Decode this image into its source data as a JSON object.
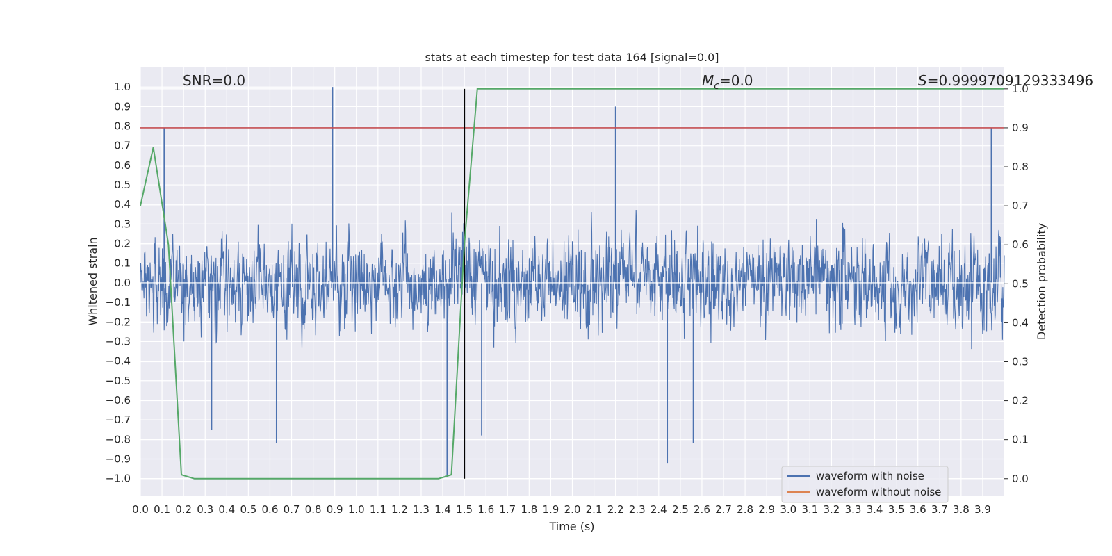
{
  "chart_data": {
    "type": "line",
    "title": "stats at each timestep for test data 164 [signal=0.0]",
    "xlabel": "Time (s)",
    "ylabel_left": "Whitened strain",
    "ylabel_right": "Detection probability",
    "xlim": [
      0.0,
      4.0
    ],
    "ylim_left": [
      -1.09,
      1.1
    ],
    "ylim_right": [
      -0.045,
      1.055
    ],
    "x_ticks": [
      "0.0",
      "0.1",
      "0.2",
      "0.3",
      "0.4",
      "0.5",
      "0.6",
      "0.7",
      "0.8",
      "0.9",
      "1.0",
      "1.1",
      "1.2",
      "1.3",
      "1.4",
      "1.5",
      "1.6",
      "1.7",
      "1.8",
      "1.9",
      "2.0",
      "2.1",
      "2.2",
      "2.3",
      "2.4",
      "2.5",
      "2.6",
      "2.7",
      "2.8",
      "2.9",
      "3.0",
      "3.1",
      "3.2",
      "3.3",
      "3.4",
      "3.5",
      "3.6",
      "3.7",
      "3.8",
      "3.9"
    ],
    "y_ticks_left": [
      "1.0",
      "0.9",
      "0.8",
      "0.7",
      "0.6",
      "0.5",
      "0.4",
      "0.3",
      "0.2",
      "0.1",
      "0.0",
      "−0.1",
      "−0.2",
      "−0.3",
      "−0.4",
      "−0.5",
      "−0.6",
      "−0.7",
      "−0.8",
      "−0.9",
      "−1.0"
    ],
    "y_ticks_right": [
      "1.0",
      "0.9",
      "0.8",
      "0.7",
      "0.6",
      "0.5",
      "0.4",
      "0.3",
      "0.2",
      "0.1",
      "0.0"
    ],
    "annotations": {
      "snr": "SNR=0.0",
      "mc_symbol": "M",
      "mc_sub": "c",
      "mc_value": "=0.0",
      "s_symbol": "S",
      "s_value": "=0.9999709129333496"
    },
    "threshold": {
      "value": 0.9,
      "axis": "right",
      "color": "#c44e52"
    },
    "marker_line": {
      "x": 1.5,
      "color": "#000000"
    },
    "series": [
      {
        "name": "waveform with noise",
        "color": "#4c72b0",
        "description": "dense whitened strain noise, samples 0-4 s",
        "envelope": {
          "typical_max": 0.45,
          "typical_min": -0.45
        },
        "spikes": [
          {
            "x": 0.11,
            "y": 0.79
          },
          {
            "x": 0.89,
            "y": 1.0
          },
          {
            "x": 2.2,
            "y": 0.9
          },
          {
            "x": 3.94,
            "y": 0.79
          },
          {
            "x": 1.42,
            "y": -0.99
          },
          {
            "x": 2.44,
            "y": -0.92
          },
          {
            "x": 0.63,
            "y": -0.82
          },
          {
            "x": 2.56,
            "y": -0.82
          },
          {
            "x": 0.33,
            "y": -0.75
          },
          {
            "x": 1.58,
            "y": -0.78
          }
        ]
      },
      {
        "name": "waveform without noise",
        "color": "#dd8452",
        "values": []
      },
      {
        "name": "detection probability",
        "color": "#55a868",
        "axis": "right",
        "x": [
          0.0,
          0.06,
          0.13,
          0.19,
          0.25,
          1.38,
          1.44,
          1.5,
          1.56,
          4.0
        ],
        "y": [
          0.7,
          0.85,
          0.6,
          0.01,
          0.0,
          0.0,
          0.01,
          0.6,
          1.0,
          1.0
        ]
      }
    ],
    "legend": {
      "position": "lower-right",
      "entries": [
        "waveform with noise",
        "waveform without noise"
      ]
    },
    "grid": true
  }
}
